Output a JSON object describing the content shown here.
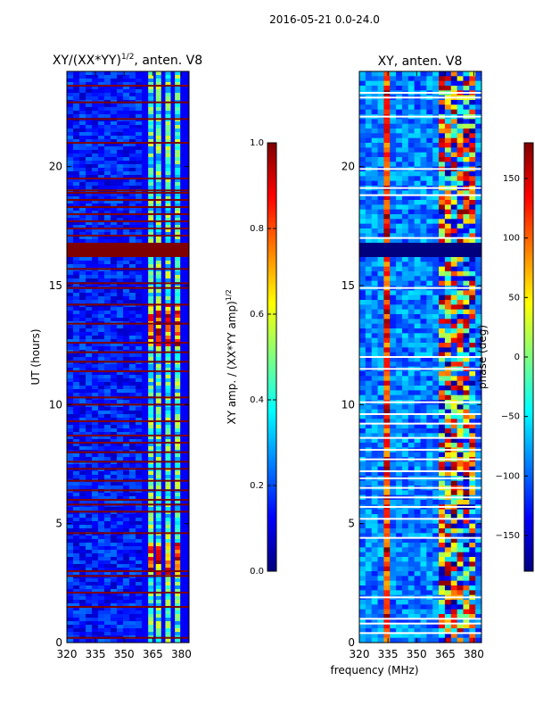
{
  "figure": {
    "suptitle": "2016-05-21 0.0-24.0",
    "xlabel_shared": "frequency (MHz)",
    "colormap": [
      "#00007f",
      "#0000ff",
      "#007fff",
      "#00ffff",
      "#7fff7f",
      "#ffff00",
      "#ff7f00",
      "#ff0000",
      "#7f0000"
    ]
  },
  "chart_data": [
    {
      "type": "heatmap",
      "title": "XY/(XX*YY)^1/2, anten. V8",
      "title_main": "XY/(XX*YY)",
      "title_exp": "1/2",
      "title_tail": ", anten. V8",
      "xlabel": "",
      "ylabel": "UT (hours)",
      "xlim": [
        320,
        384
      ],
      "ylim": [
        0,
        24
      ],
      "xticks": [
        320,
        335,
        350,
        365,
        380
      ],
      "yticks": [
        0,
        5,
        10,
        15,
        20
      ],
      "bright_band_freqs": [
        364,
        368,
        373,
        378
      ],
      "saturated_rows_ut": [
        0.2,
        1.5,
        2.1,
        2.8,
        3.0,
        4.6,
        5.5,
        5.8,
        6.0,
        6.4,
        6.8,
        7.3,
        7.6,
        8.0,
        8.4,
        8.7,
        9.3,
        10.0,
        10.3,
        11.4,
        11.8,
        12.2,
        12.6,
        13.4,
        14.2,
        14.9,
        15.1,
        15.7,
        17.1,
        17.4,
        17.7,
        18.0,
        18.3,
        18.6,
        18.9,
        19.0,
        19.5,
        21.0,
        22.0,
        22.7,
        23.4
      ],
      "saturated_block_ut": [
        16.2,
        16.8
      ],
      "colorbar": {
        "label": "XY amp. / (XX*YY amp)^1/2",
        "label_main": "XY amp. / (XX*YY amp)",
        "label_exp": "1/2",
        "range": [
          0.0,
          1.0
        ],
        "ticks": [
          "0.0",
          "0.2",
          "0.4",
          "0.6",
          "0.8",
          "1.0"
        ]
      }
    },
    {
      "type": "heatmap",
      "title": "XY, anten. V8",
      "xlabel": "frequency (MHz)",
      "ylabel": "",
      "xlim": [
        320,
        384
      ],
      "ylim": [
        0,
        24
      ],
      "xticks": [
        320,
        335,
        350,
        365,
        380
      ],
      "yticks": [
        0,
        5,
        10,
        15,
        20
      ],
      "bright_band_freqs": [
        362,
        366,
        370,
        374,
        378
      ],
      "flagged_rows_ut": [
        0.4,
        0.8,
        1.0,
        1.9,
        4.4,
        5.2,
        5.7,
        6.1,
        6.5,
        6.9,
        7.2,
        7.7,
        8.1,
        8.6,
        9.2,
        9.6,
        10.1,
        11.5,
        12.0,
        14.9,
        17.0,
        18.8,
        19.1,
        19.9,
        22.1,
        22.9,
        23.1
      ],
      "flagged_block_ut": [
        16.2,
        16.8
      ],
      "colorbar": {
        "label": "phase (deg)",
        "range": [
          -180,
          180
        ],
        "ticks": [
          "−150",
          "−100",
          "−50",
          "0",
          "50",
          "100",
          "150"
        ],
        "tick_values": [
          -150,
          -100,
          -50,
          0,
          50,
          100,
          150
        ]
      }
    }
  ]
}
